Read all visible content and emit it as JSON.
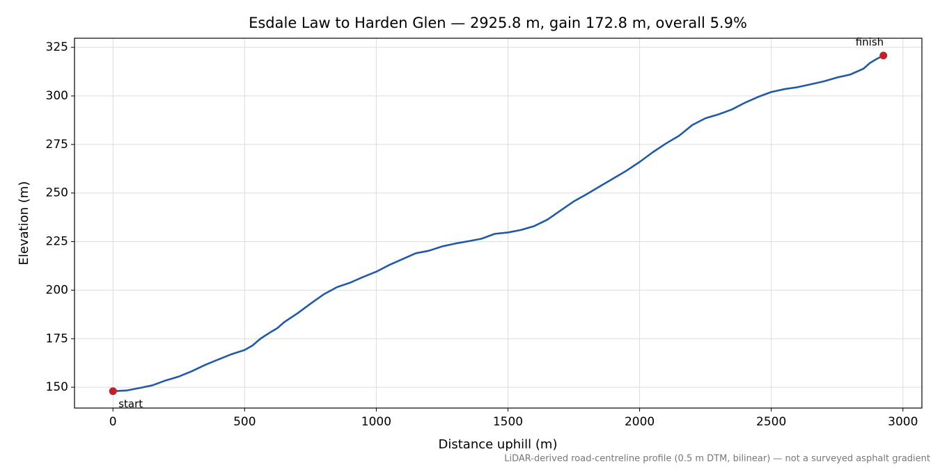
{
  "chart_data": {
    "type": "line",
    "title": "Esdale Law to Harden Glen — 2925.8 m, gain 172.8 m, overall 5.9%",
    "x_label": "Distance uphill (m)",
    "y_label": "Elevation (m)",
    "footnote": "LiDAR-derived road-centreline profile (0.5 m DTM, bilinear) — not a surveyed asphalt gradient",
    "series": [
      {
        "color": "#1f5aa8",
        "x": [
          0,
          50,
          100,
          150,
          200,
          250,
          300,
          350,
          400,
          450,
          500,
          530,
          560,
          600,
          625,
          650,
          700,
          750,
          800,
          850,
          900,
          950,
          1000,
          1050,
          1100,
          1150,
          1200,
          1250,
          1300,
          1350,
          1400,
          1450,
          1500,
          1550,
          1600,
          1650,
          1700,
          1750,
          1800,
          1850,
          1900,
          1950,
          2000,
          2050,
          2100,
          2150,
          2200,
          2250,
          2300,
          2350,
          2400,
          2450,
          2500,
          2550,
          2600,
          2650,
          2700,
          2750,
          2800,
          2850,
          2875,
          2900,
          2925.8
        ],
        "values": [
          148,
          148.3,
          149.6,
          151,
          153.5,
          155.5,
          158.3,
          161.5,
          164.3,
          167,
          169.2,
          171.5,
          175,
          178.5,
          180.5,
          183.5,
          188,
          193,
          197.8,
          201.5,
          203.8,
          206.8,
          209.5,
          213,
          216,
          219,
          220.3,
          222.5,
          224,
          225.2,
          226.5,
          229,
          229.7,
          231,
          233,
          236.3,
          241,
          245.7,
          249.5,
          253.5,
          257.5,
          261.5,
          266,
          271,
          275.5,
          279.5,
          285,
          288.5,
          290.5,
          293,
          296.5,
          299.5,
          302,
          303.5,
          304.5,
          306,
          307.5,
          309.5,
          311,
          314,
          317,
          319,
          320.8
        ]
      }
    ],
    "points": [
      {
        "label": "start",
        "x": 0,
        "y": 148,
        "color": "#c0202a"
      },
      {
        "label": "finish",
        "x": 2925.8,
        "y": 320.8,
        "color": "#c0202a"
      }
    ],
    "xlim": [
      -146,
      3072
    ],
    "ylim": [
      139.3,
      329.7
    ],
    "xticks": [
      0,
      500,
      1000,
      1500,
      2000,
      2500,
      3000
    ],
    "yticks": [
      150,
      175,
      200,
      225,
      250,
      275,
      300,
      325
    ],
    "grid": true
  }
}
